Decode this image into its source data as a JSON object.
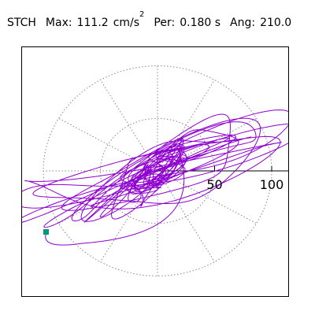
{
  "header": {
    "station": "STCH",
    "max_label": "Max:",
    "max_value": "111.2",
    "max_unit": "cm/s",
    "max_unit_exp": "2",
    "per_label": "Per:",
    "per_value": "0.180 s",
    "ang_label": "Ang:",
    "ang_value": "210.0"
  },
  "chart_data": {
    "type": "polar-particle-motion",
    "radial_ticks": [
      "50",
      "100"
    ],
    "radial_max": 100,
    "spoke_count": 12,
    "angle_deg": 210.0,
    "colors": {
      "trace": "#8f00d0",
      "grid": "#888888",
      "axis": "#000000",
      "end_marker": "#009977"
    }
  }
}
